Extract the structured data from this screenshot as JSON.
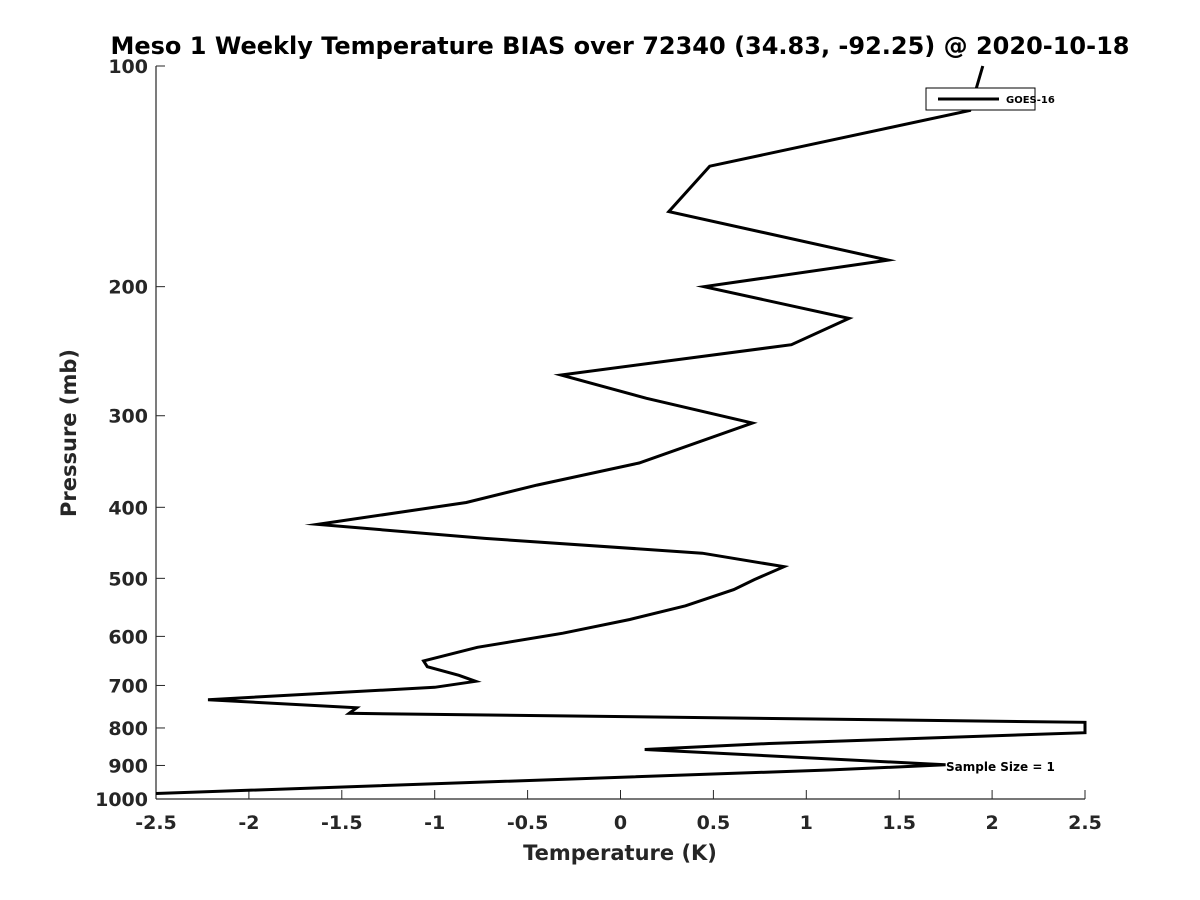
{
  "chart_data": {
    "type": "line",
    "title": "Meso 1 Weekly Temperature BIAS over 72340 (34.83, -92.25) @ 2020-10-18",
    "xlabel": "Temperature (K)",
    "ylabel": "Pressure (mb)",
    "xlim": [
      -2.5,
      2.5
    ],
    "ylim": [
      100,
      1000
    ],
    "y_scale": "log",
    "y_reversed": true,
    "x_ticks": [
      -2.5,
      -2,
      -1.5,
      -1,
      -0.5,
      0,
      0.5,
      1,
      1.5,
      2,
      2.5
    ],
    "x_tick_labels": [
      "-2.5",
      "-2",
      "-1.5",
      "-1",
      "-0.5",
      "0",
      "0.5",
      "1",
      "1.5",
      "2",
      "2.5"
    ],
    "y_ticks": [
      100,
      200,
      300,
      400,
      500,
      600,
      700,
      800,
      900,
      1000
    ],
    "y_tick_labels": [
      "100",
      "200",
      "300",
      "400",
      "500",
      "600",
      "700",
      "800",
      "900",
      "1000"
    ],
    "grid": false,
    "legend": {
      "position": "top-right",
      "entries": [
        "GOES-16"
      ]
    },
    "annotations": [
      {
        "text": "Sample Size = 1",
        "x": 1.75,
        "y": 900
      }
    ],
    "series": [
      {
        "name": "GOES-16",
        "color": "#000000",
        "points": [
          [
            1.95,
            100
          ],
          [
            1.88,
            115
          ],
          [
            0.48,
            137
          ],
          [
            0.26,
            158
          ],
          [
            1.44,
            184
          ],
          [
            0.45,
            200
          ],
          [
            1.23,
            221
          ],
          [
            0.92,
            240
          ],
          [
            -0.32,
            264
          ],
          [
            0.14,
            284
          ],
          [
            0.71,
            307
          ],
          [
            0.1,
            348
          ],
          [
            -0.45,
            373
          ],
          [
            -0.83,
            394
          ],
          [
            -1.63,
            422
          ],
          [
            -0.73,
            441
          ],
          [
            0.44,
            462
          ],
          [
            0.88,
            482
          ],
          [
            0.72,
            502
          ],
          [
            0.61,
            518
          ],
          [
            0.35,
            545
          ],
          [
            0.05,
            569
          ],
          [
            -0.31,
            594
          ],
          [
            -0.77,
            621
          ],
          [
            -1.06,
            648
          ],
          [
            -1.04,
            660
          ],
          [
            -0.87,
            678
          ],
          [
            -0.78,
            691
          ],
          [
            -1.0,
            704
          ],
          [
            -2.22,
            732
          ],
          [
            -1.42,
            751
          ],
          [
            -1.46,
            764
          ],
          [
            2.5,
            786
          ],
          [
            2.5,
            812
          ],
          [
            0.8,
            840
          ],
          [
            0.13,
            856
          ],
          [
            1.75,
            898
          ],
          [
            1.12,
            913
          ],
          [
            -2.5,
            983
          ]
        ]
      }
    ]
  }
}
